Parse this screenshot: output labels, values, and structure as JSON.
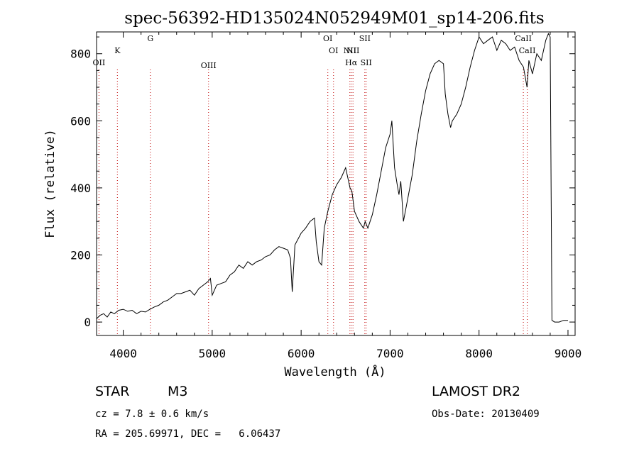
{
  "chart_data": {
    "type": "line",
    "title": "spec-56392-HD135024N052949M01_sp14-206.fits",
    "xlabel": "Wavelength (Å)",
    "ylabel": "Flux (relative)",
    "xlim": [
      3700,
      9080
    ],
    "ylim": [
      -40,
      865
    ],
    "xticks": [
      4000,
      5000,
      6000,
      7000,
      8000,
      9000
    ],
    "yticks": [
      0,
      200,
      400,
      600,
      800
    ],
    "grid": false,
    "series": [
      {
        "x": [
          3700,
          3740,
          3780,
          3820,
          3860,
          3900,
          3950,
          4000,
          4050,
          4100,
          4150,
          4200,
          4250,
          4300,
          4350,
          4400,
          4450,
          4500,
          4550,
          4600,
          4650,
          4700,
          4750,
          4800,
          4850,
          4900,
          4950,
          4980,
          5000,
          5050,
          5100,
          5150,
          5200,
          5250,
          5300,
          5350,
          5400,
          5450,
          5500,
          5550,
          5600,
          5650,
          5700,
          5750,
          5800,
          5850,
          5880,
          5900,
          5930,
          5970,
          6000,
          6050,
          6100,
          6150,
          6170,
          6200,
          6230,
          6260,
          6300,
          6350,
          6400,
          6450,
          6500,
          6550,
          6570,
          6600,
          6650,
          6700,
          6720,
          6750,
          6800,
          6850,
          6900,
          6950,
          7000,
          7020,
          7050,
          7080,
          7100,
          7120,
          7150,
          7200,
          7250,
          7300,
          7350,
          7400,
          7450,
          7500,
          7550,
          7600,
          7620,
          7650,
          7680,
          7700,
          7750,
          7800,
          7850,
          7900,
          7950,
          8000,
          8050,
          8100,
          8150,
          8200,
          8250,
          8300,
          8350,
          8400,
          8450,
          8500,
          8540,
          8560,
          8600,
          8650,
          8700,
          8750,
          8780,
          8800,
          8810,
          8820,
          8850,
          8900,
          8950,
          9000
        ],
        "y": [
          10,
          20,
          25,
          15,
          30,
          25,
          35,
          38,
          32,
          35,
          25,
          32,
          30,
          38,
          45,
          50,
          60,
          65,
          75,
          85,
          85,
          90,
          95,
          80,
          100,
          110,
          120,
          130,
          80,
          110,
          115,
          120,
          140,
          150,
          170,
          160,
          180,
          170,
          180,
          185,
          195,
          200,
          215,
          225,
          220,
          215,
          190,
          90,
          230,
          250,
          265,
          280,
          300,
          310,
          240,
          180,
          170,
          280,
          330,
          380,
          410,
          430,
          460,
          400,
          390,
          330,
          300,
          280,
          300,
          280,
          320,
          380,
          450,
          520,
          560,
          600,
          460,
          410,
          380,
          420,
          300,
          370,
          440,
          540,
          620,
          690,
          740,
          770,
          780,
          770,
          680,
          620,
          580,
          600,
          620,
          650,
          700,
          760,
          810,
          850,
          830,
          840,
          850,
          810,
          840,
          830,
          810,
          820,
          780,
          760,
          700,
          780,
          740,
          800,
          780,
          840,
          860,
          850,
          400,
          5,
          0,
          0,
          5,
          5
        ]
      }
    ],
    "emission_lines": [
      {
        "label": "OII",
        "x": 3727
      },
      {
        "label": "K",
        "x": 3934
      },
      {
        "label": "G",
        "x": 4305
      },
      {
        "label": "OIII",
        "x": 4959
      },
      {
        "label": "OI",
        "x": 6300
      },
      {
        "label": "OI",
        "x": 6364
      },
      {
        "label": "NII",
        "x": 6548
      },
      {
        "label": "Hα",
        "x": 6563
      },
      {
        "label": "NII",
        "x": 6583
      },
      {
        "label": "SII",
        "x": 6716
      },
      {
        "label": "SII",
        "x": 6731
      },
      {
        "label": "CaII",
        "x": 8498
      },
      {
        "label": "CaII",
        "x": 8542
      }
    ]
  },
  "info": {
    "class_label": "STAR",
    "subclass": "M3",
    "survey": "LAMOST DR2",
    "cz": "cz = 7.8 ± 0.6 km/s",
    "obs_date": "Obs-Date: 20130409",
    "coords": "RA = 205.69971, DEC =   6.06437"
  }
}
